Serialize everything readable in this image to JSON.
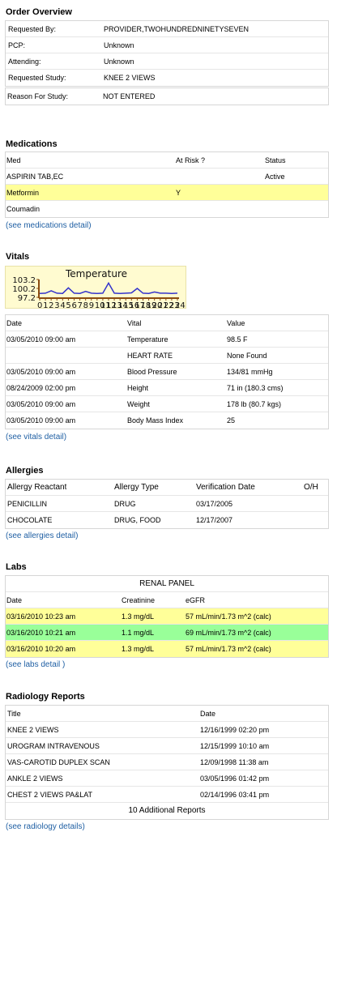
{
  "order": {
    "title": "Order Overview",
    "rows": [
      {
        "label": "Requested By:",
        "value": "PROVIDER,TWOHUNDREDNINETYSEVEN"
      },
      {
        "label": "PCP:",
        "value": "Unknown"
      },
      {
        "label": "Attending:",
        "value": "Unknown"
      },
      {
        "label": "Requested Study:",
        "value": "KNEE 2 VIEWS"
      }
    ],
    "reason_label": "Reason For Study:",
    "reason_value": "NOT ENTERED"
  },
  "medications": {
    "title": "Medications",
    "headers": {
      "med": "Med",
      "at_risk": "At Risk ?",
      "status": "Status"
    },
    "rows": [
      {
        "med": "ASPIRIN TAB,EC",
        "at_risk": "",
        "status": "Active"
      },
      {
        "med": "Metformin",
        "at_risk": "Y",
        "status": ""
      },
      {
        "med": "Coumadin",
        "at_risk": "",
        "status": ""
      }
    ],
    "detail_link": "(see medications detail)"
  },
  "vitals": {
    "title": "Vitals",
    "headers": {
      "date": "Date",
      "vital": "Vital",
      "value": "Value"
    },
    "rows": [
      {
        "date": "03/05/2010 09:00 am",
        "vital": "Temperature",
        "value": "98.5 F"
      },
      {
        "date": "",
        "vital": "HEART RATE",
        "value": "None Found"
      },
      {
        "date": "03/05/2010 09:00 am",
        "vital": "Blood Pressure",
        "value": "134/81 mmHg"
      },
      {
        "date": "08/24/2009 02:00 pm",
        "vital": "Height",
        "value": "71 in (180.3 cms)"
      },
      {
        "date": "03/05/2010 09:00 am",
        "vital": "Weight",
        "value": "178 lb (80.7 kgs)"
      },
      {
        "date": "03/05/2010 09:00 am",
        "vital": "Body Mass Index",
        "value": "25"
      }
    ],
    "detail_link": "(see vitals detail)"
  },
  "chart_data": {
    "type": "line",
    "title": "Temperature",
    "y_ticks": [
      "103.2",
      "100.2",
      "97.2"
    ],
    "ylim": [
      97.2,
      103.2
    ],
    "x_tick_labels": [
      "0",
      "1",
      "2",
      "3",
      "4",
      "5",
      "6",
      "7",
      "8",
      "9",
      "10",
      "11",
      "12",
      "13",
      "14",
      "15",
      "16",
      "17",
      "18",
      "19",
      "20",
      "21",
      "22",
      "23",
      "24"
    ],
    "x": [
      0,
      1,
      2,
      3,
      4,
      5,
      6,
      7,
      8,
      9,
      10,
      11,
      12,
      13,
      14,
      15,
      16,
      17,
      18,
      19,
      20,
      21,
      22,
      23,
      24
    ],
    "values": [
      98.5,
      98.6,
      99.4,
      98.6,
      98.5,
      100.4,
      98.6,
      98.5,
      99.2,
      98.6,
      98.5,
      98.6,
      102.0,
      98.6,
      98.5,
      98.6,
      98.7,
      100.2,
      98.6,
      98.5,
      99.0,
      98.6,
      98.6,
      98.5,
      98.6
    ],
    "line_color": "#3333cc",
    "axis_color": "#8a4b10"
  },
  "allergies": {
    "title": "Allergies",
    "headers": {
      "reactant": "Allergy Reactant",
      "type": "Allergy Type",
      "verification": "Verification Date",
      "oh": "O/H"
    },
    "rows": [
      {
        "reactant": "PENICILLIN",
        "type": "DRUG",
        "verification": "03/17/2005",
        "oh": ""
      },
      {
        "reactant": "CHOCOLATE",
        "type": "DRUG, FOOD",
        "verification": "12/17/2007",
        "oh": ""
      }
    ],
    "detail_link": "(see allergies detail)"
  },
  "labs": {
    "title": "Labs",
    "panel": "RENAL PANEL",
    "headers": {
      "date": "Date",
      "creatinine": "Creatinine",
      "egfr": "eGFR"
    },
    "rows": [
      {
        "date": "03/16/2010 10:23 am",
        "creatinine": "1.3 mg/dL",
        "egfr": "57 mL/min/1.73 m^2 (calc)",
        "highlight": "yellow"
      },
      {
        "date": "03/16/2010 10:21 am",
        "creatinine": "1.1 mg/dL",
        "egfr": "69 mL/min/1.73 m^2 (calc)",
        "highlight": "green"
      },
      {
        "date": "03/16/2010 10:20 am",
        "creatinine": "1.3 mg/dL",
        "egfr": "57 mL/min/1.73 m^2 (calc)",
        "highlight": "yellow"
      }
    ],
    "detail_link": "(see labs detail )"
  },
  "radiology": {
    "title": "Radiology Reports",
    "headers": {
      "title": "Title",
      "date": "Date"
    },
    "rows": [
      {
        "title": "KNEE 2 VIEWS",
        "date": "12/16/1999 02:20 pm"
      },
      {
        "title": "UROGRAM INTRAVENOUS",
        "date": "12/15/1999 10:10 am"
      },
      {
        "title": "VAS-CAROTID DUPLEX SCAN",
        "date": "12/09/1998 11:38 am"
      },
      {
        "title": "ANKLE 2 VIEWS",
        "date": "03/05/1996 01:42 pm"
      },
      {
        "title": "CHEST 2 VIEWS PA&LAT",
        "date": "02/14/1996 03:41 pm"
      }
    ],
    "additional": "10 Additional Reports",
    "detail_link": "(see radiology details)"
  },
  "colors": {
    "highlight_yellow": "#ffff99",
    "highlight_green": "#99ff99",
    "link": "#1f5fa3",
    "border": "#d6d6d6"
  }
}
